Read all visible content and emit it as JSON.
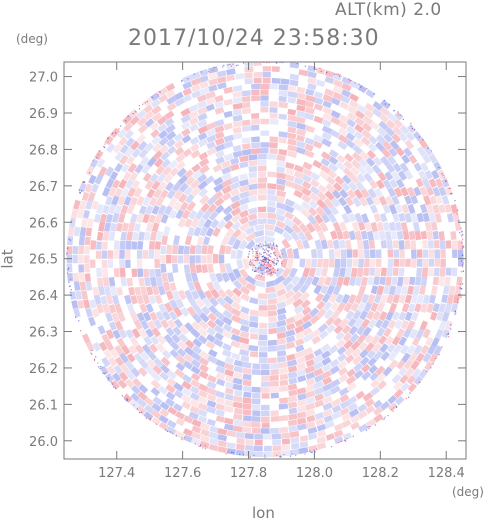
{
  "header": {
    "altitude_label": "ALT(km) 2.0",
    "timestamp": "2017/10/24 23:58:30"
  },
  "chart_data": {
    "type": "heatmap",
    "title": "",
    "xlabel": "lon",
    "ylabel": "lat",
    "x_unit": "(deg)",
    "y_unit": "(deg)",
    "xlim": [
      127.24,
      128.46
    ],
    "ylim": [
      25.95,
      27.04
    ],
    "x_ticks": [
      127.4,
      127.6,
      127.8,
      128.0,
      128.2,
      128.4
    ],
    "y_ticks": [
      26.0,
      26.1,
      26.2,
      26.3,
      26.4,
      26.5,
      26.6,
      26.7,
      26.8,
      26.9,
      27.0
    ],
    "x_tick_labels": [
      "127.4",
      "127.6",
      "127.8",
      "128.0",
      "128.2",
      "128.4"
    ],
    "y_tick_labels": [
      "26.0",
      "26.1",
      "26.2",
      "26.3",
      "26.4",
      "26.5",
      "26.6",
      "26.7",
      "26.8",
      "26.9",
      "27.0"
    ],
    "radar_center": {
      "lon": 127.85,
      "lat": 26.5
    },
    "radar_range_lon": 0.605,
    "radar_range_lat": 0.545,
    "colors": {
      "positive": "#f4a6ad",
      "negative": "#a9b2f0",
      "neutral": "#ffffff",
      "axis": "#7a7a7a"
    },
    "grid": false,
    "legend": "none"
  }
}
